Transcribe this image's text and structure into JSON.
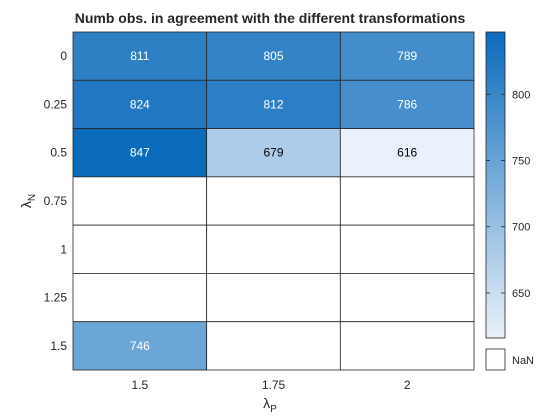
{
  "chart_data": {
    "type": "heatmap",
    "title": "Numb obs. in agreement with the different transformations",
    "xlabel": {
      "main": "λ",
      "sub": "P"
    },
    "ylabel": {
      "main": "λ",
      "sub": "N"
    },
    "x_categories": [
      "1.5",
      "1.75",
      "2"
    ],
    "y_categories": [
      "0",
      "0.25",
      "0.5",
      "0.75",
      "1",
      "1.25",
      "1.5"
    ],
    "values": [
      [
        811,
        805,
        789
      ],
      [
        824,
        812,
        786
      ],
      [
        847,
        679,
        616
      ],
      [
        null,
        null,
        null
      ],
      [
        null,
        null,
        null
      ],
      [
        null,
        null,
        null
      ],
      [
        746,
        null,
        null
      ]
    ],
    "colorbar": {
      "range": [
        616,
        847
      ],
      "ticks": [
        "650",
        "700",
        "750",
        "800"
      ],
      "low_color": "#e9f1fa",
      "high_color": "#0b6bbb"
    },
    "nan_legend": {
      "label": "NaN",
      "color": "#ffffff"
    },
    "grid": true
  }
}
